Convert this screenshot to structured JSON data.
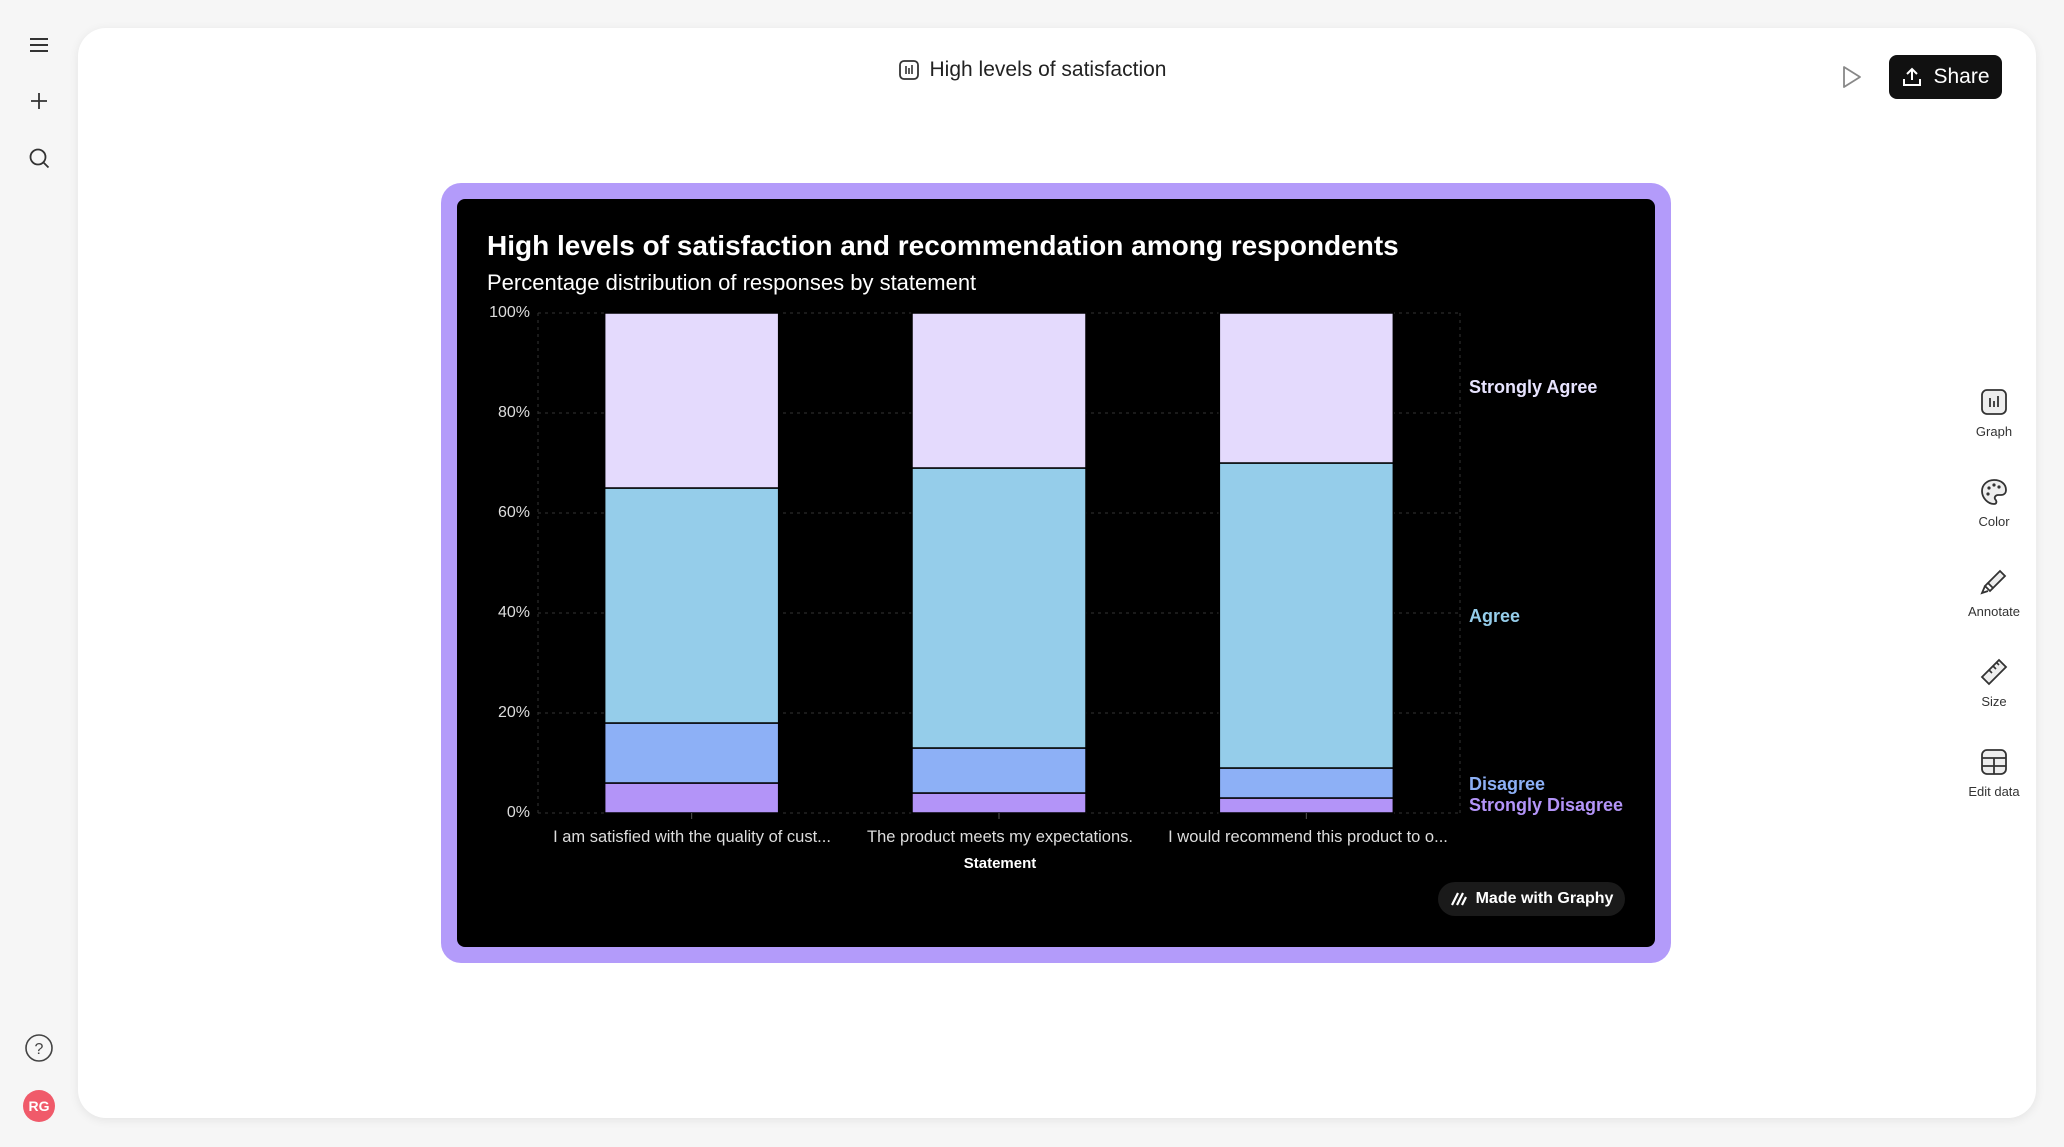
{
  "header": {
    "title": "High levels of satisfaction",
    "share_label": "Share"
  },
  "left_rail": {
    "avatar_initials": "RG"
  },
  "tools": [
    {
      "label": "Graph"
    },
    {
      "label": "Color"
    },
    {
      "label": "Annotate"
    },
    {
      "label": "Size"
    },
    {
      "label": "Edit data"
    }
  ],
  "badge": "Made with Graphy",
  "colors": {
    "card_border": "#b39bfa",
    "Strongly Agree": "#e4dafd",
    "Agree": "#95cdea",
    "Disagree": "#8db0f6",
    "Strongly Disagree": "#b394f8"
  },
  "chart_data": {
    "type": "bar",
    "stacked": true,
    "title": "High levels of satisfaction and recommendation among respondents",
    "subtitle": "Percentage distribution of responses by statement",
    "xlabel": "Statement",
    "ylabel": "",
    "ylim": [
      0,
      100
    ],
    "yticks": [
      "0%",
      "20%",
      "40%",
      "60%",
      "80%",
      "100%"
    ],
    "grid": true,
    "legend": "right",
    "categories": [
      "I am satisfied with the quality of cust...",
      "The product meets my expectations.",
      "I would recommend this product to o..."
    ],
    "series": [
      {
        "name": "Strongly Disagree",
        "values": [
          6,
          4,
          3
        ]
      },
      {
        "name": "Disagree",
        "values": [
          12,
          9,
          6
        ]
      },
      {
        "name": "Agree",
        "values": [
          47,
          56,
          61
        ]
      },
      {
        "name": "Strongly Agree",
        "values": [
          35,
          31,
          30
        ]
      }
    ]
  }
}
